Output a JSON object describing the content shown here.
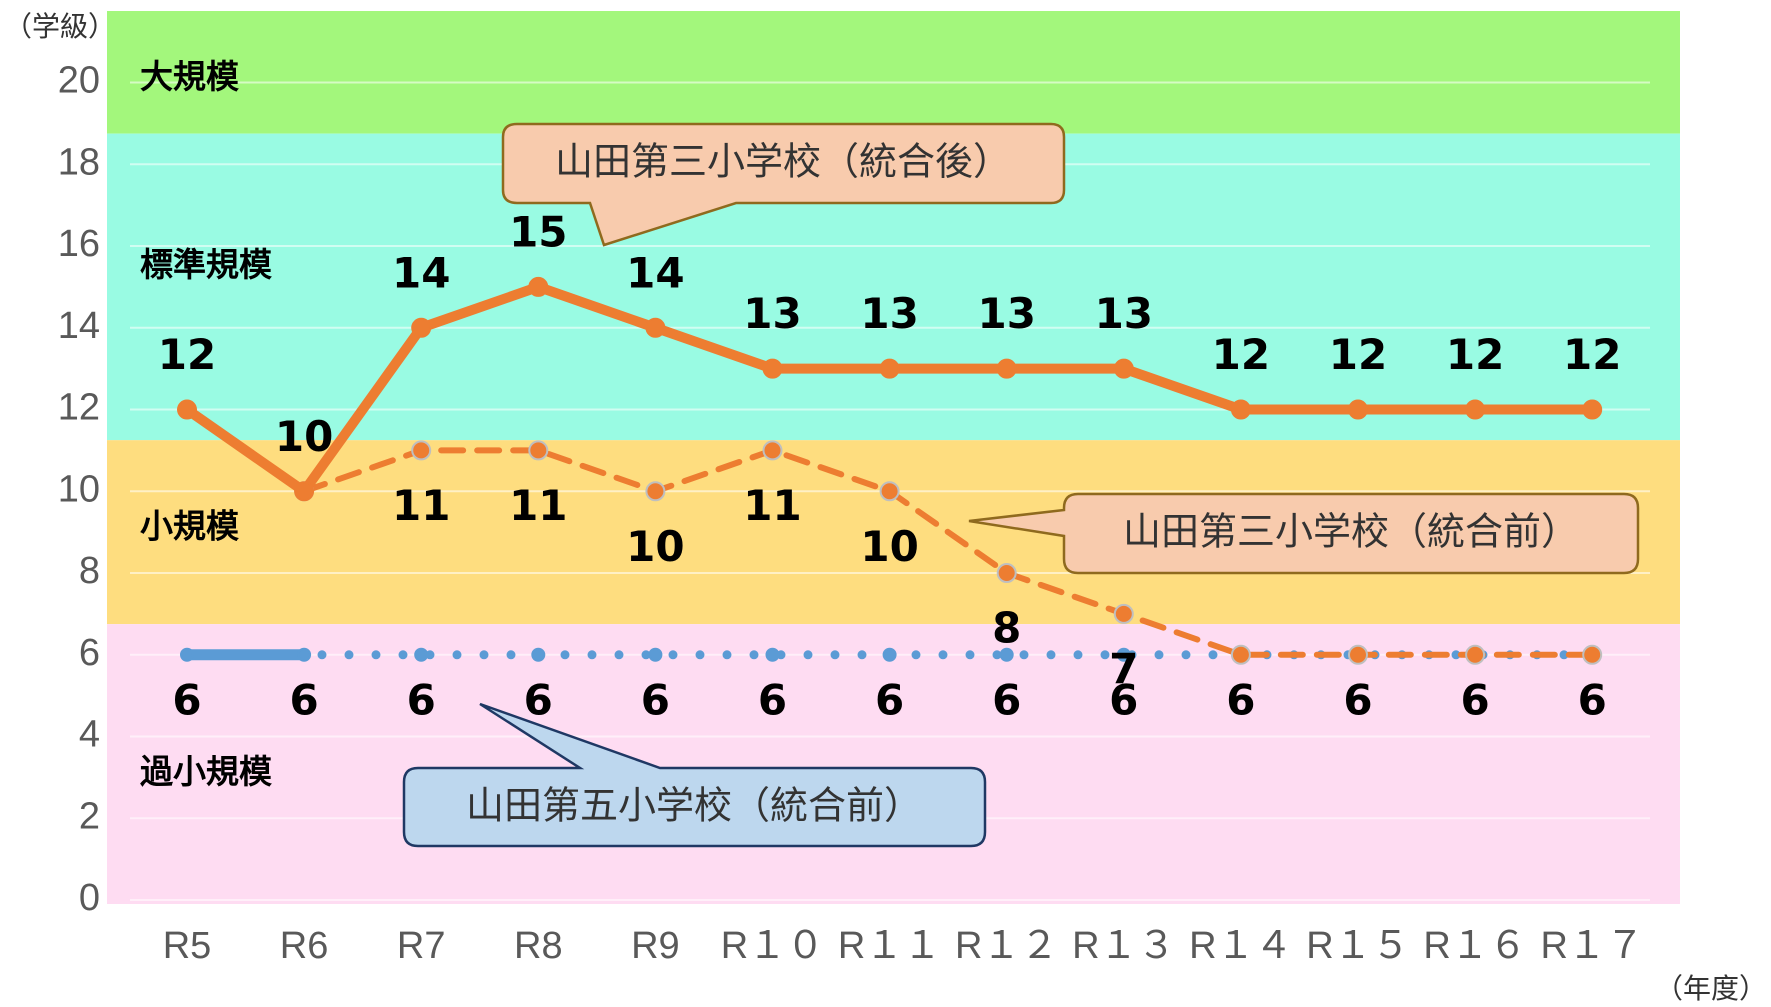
{
  "chart_data": {
    "type": "line",
    "y_axis_label": "（学級）",
    "x_axis_label": "（年度）",
    "categories": [
      "R5",
      "R6",
      "R7",
      "R8",
      "R9",
      "R１０",
      "R１１",
      "R１２",
      "R１３",
      "R１４",
      "R１５",
      "R１６",
      "R１７"
    ],
    "series": [
      {
        "name": "山田第三小学校（統合後）",
        "color": "#ed7d31",
        "style": "solid",
        "values": [
          12,
          10,
          14,
          15,
          14,
          13,
          13,
          13,
          13,
          12,
          12,
          12,
          12
        ],
        "value_labels": [
          "12",
          "10",
          "14",
          "15",
          "14",
          "13",
          "13",
          "13",
          "13",
          "12",
          "12",
          "12",
          "12"
        ]
      },
      {
        "name": "山田第三小学校（統合前）",
        "color": "#ed7d31",
        "style": "dashed",
        "values": [
          null,
          10,
          11,
          11,
          10,
          11,
          10,
          8,
          7,
          6,
          6,
          6,
          6
        ],
        "value_labels": [
          null,
          null,
          "11",
          "11",
          "10",
          "11",
          "10",
          "8",
          "7",
          null,
          null,
          null,
          null
        ]
      },
      {
        "name": "山田第五小学校（統合前）",
        "color": "#5b9bd5",
        "style": "dotted",
        "values": [
          6,
          6,
          6,
          6,
          6,
          6,
          6,
          6,
          6,
          6,
          6,
          6,
          6
        ],
        "value_labels": [
          "6",
          "6",
          "6",
          "6",
          "6",
          "6",
          "6",
          "6",
          "6",
          "6",
          "6",
          "6",
          "6"
        ]
      }
    ],
    "bands": [
      {
        "name": "大規模",
        "from": 18.75,
        "to": 21.75,
        "color": "#a3f77c"
      },
      {
        "name": "標準規模",
        "from": 11.25,
        "to": 18.75,
        "color": "#99fbe3"
      },
      {
        "name": "小規模",
        "from": 6.75,
        "to": 11.25,
        "color": "#fedd7f"
      },
      {
        "name": "過小規模",
        "from": 0,
        "to": 6.75,
        "color": "#fedcf2"
      }
    ],
    "ylim": [
      0,
      21.75
    ],
    "yticks": [
      0,
      2,
      4,
      6,
      8,
      10,
      12,
      14,
      16,
      18,
      20
    ],
    "grid": true
  }
}
